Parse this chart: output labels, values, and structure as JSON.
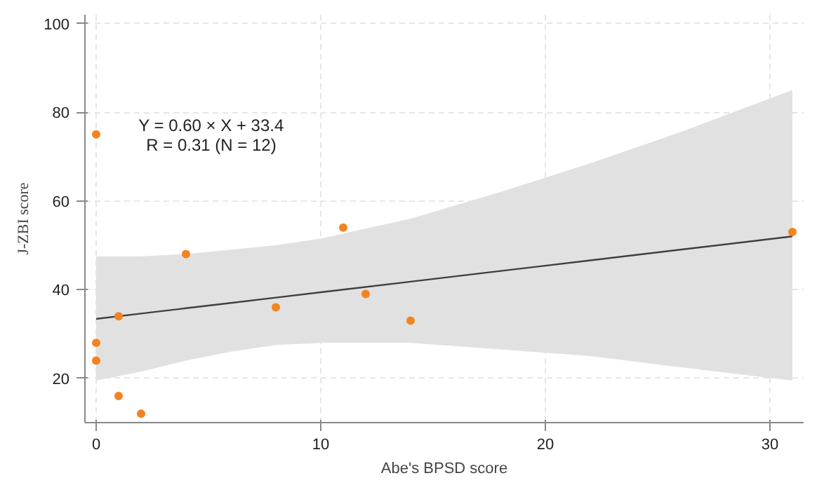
{
  "chart_data": {
    "type": "scatter",
    "xlabel": "Abe's BPSD score",
    "ylabel": "J-ZBI score",
    "annotations": [
      "Y = 0.60 × X + 33.4\nR = 0.31 (N = 12)"
    ],
    "xlim": [
      -0.5,
      31.5
    ],
    "ylim": [
      10,
      102
    ],
    "xticks": [
      0,
      10,
      20,
      30
    ],
    "yticks": [
      20,
      40,
      60,
      80,
      100
    ],
    "grid": true,
    "marker": "circle",
    "series": [
      {
        "color": "#f5821f",
        "x": [
          0,
          0,
          0,
          1,
          1,
          2,
          4,
          8,
          11,
          12,
          14,
          31
        ],
        "values": [
          75,
          28,
          24,
          34,
          16,
          12,
          48,
          36,
          54,
          39,
          33,
          53
        ]
      },
      {
        "type": "line",
        "color": "#404040",
        "marker": "none",
        "x": [
          0,
          2,
          4,
          6,
          8,
          10,
          14,
          18,
          22,
          26,
          31
        ],
        "values": [
          33.4,
          34.6,
          35.8,
          37,
          38.2,
          39.4,
          41.8,
          44.2,
          46.6,
          49,
          52
        ],
        "lower": [
          19.5,
          21.5,
          24,
          26,
          27.5,
          28,
          28,
          26.5,
          25,
          22.5,
          19.5
        ],
        "upper": [
          47.5,
          47.5,
          48,
          49,
          50,
          51.5,
          56,
          62,
          68.5,
          75.5,
          85
        ]
      }
    ]
  }
}
